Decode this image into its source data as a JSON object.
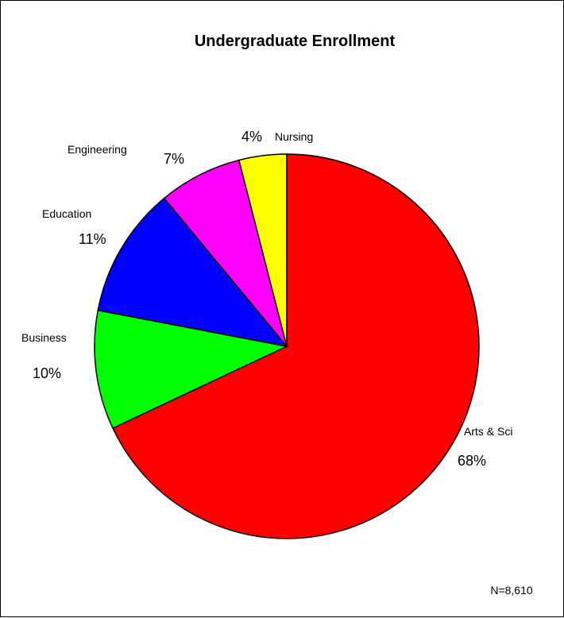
{
  "chart_data": {
    "type": "pie",
    "title": "Undergraduate Enrollment",
    "note": "N=8,610",
    "start_position": "top",
    "direction": "clockwise",
    "slices": [
      {
        "label": "Arts & Sci",
        "value": 68,
        "percent_label": "68%",
        "color": "#FF0000"
      },
      {
        "label": "Business",
        "value": 10,
        "percent_label": "10%",
        "color": "#00FF00"
      },
      {
        "label": "Education",
        "value": 11,
        "percent_label": "11%",
        "color": "#0000FF"
      },
      {
        "label": "Engineering",
        "value": 7,
        "percent_label": "7%",
        "color": "#FF00FF"
      },
      {
        "label": "Nursing",
        "value": 4,
        "percent_label": "4%",
        "color": "#FFFF00"
      }
    ]
  }
}
